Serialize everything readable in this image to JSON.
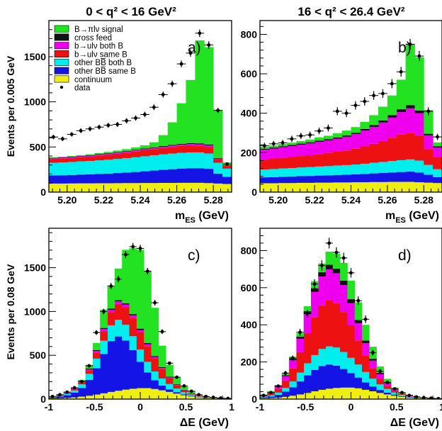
{
  "row_headers": {
    "left": "0 < q² < 16 GeV²",
    "right": "16 < q² < 26.4 GeV²"
  },
  "y_titles": {
    "top": "Events per 0.005 GeV",
    "bottom": "Events per 0.08 GeV"
  },
  "legend": [
    {
      "name": "B→πlν signal",
      "color": "#22e222",
      "kind": "box"
    },
    {
      "name": "cross feed",
      "color": "#111111",
      "kind": "box"
    },
    {
      "name": "b→ulν both B",
      "color": "#ee00ee",
      "kind": "box"
    },
    {
      "name": "b→ulν same B",
      "color": "#ee1111",
      "kind": "box"
    },
    {
      "name": "other BB̅ both B",
      "color": "#00eeee",
      "kind": "box"
    },
    {
      "name": "other BB̅ same B",
      "color": "#1414e6",
      "kind": "box"
    },
    {
      "name": "continuum",
      "color": "#eeee11",
      "kind": "box"
    },
    {
      "name": "data",
      "color": "#000000",
      "kind": "marker"
    }
  ],
  "chart_data": [
    {
      "type": "area",
      "panel": "a)",
      "xlabel": "m_ES (GeV)",
      "ylabel": "Events per 0.005 GeV",
      "title": "0 < q² < 16 GeV²",
      "xlim": [
        5.19,
        5.29
      ],
      "ylim": [
        0,
        1900
      ],
      "xticks": [
        5.2,
        5.22,
        5.24,
        5.26,
        5.28
      ],
      "xtick_labels": [
        "5.20",
        "5.22",
        "5.24",
        "5.26",
        "5.28"
      ],
      "yticks": [
        0,
        500,
        1000,
        1500
      ],
      "ytick_labels": [
        "0",
        "500",
        "1000",
        "1500"
      ],
      "x": [
        5.1925,
        5.1975,
        5.2025,
        5.2075,
        5.2125,
        5.2175,
        5.2225,
        5.2275,
        5.2325,
        5.2375,
        5.2425,
        5.2475,
        5.2525,
        5.2575,
        5.2625,
        5.2675,
        5.2725,
        5.2775,
        5.2825,
        5.2875
      ],
      "series": [
        {
          "name": "continuum",
          "values": [
            95,
            95,
            96,
            97,
            97,
            98,
            98,
            99,
            100,
            100,
            101,
            101,
            102,
            102,
            103,
            103,
            103,
            100,
            95,
            90
          ]
        },
        {
          "name": "other BB̅ same B",
          "values": [
            90,
            92,
            94,
            97,
            100,
            103,
            107,
            112,
            117,
            123,
            130,
            138,
            145,
            152,
            158,
            162,
            162,
            158,
            110,
            80
          ]
        },
        {
          "name": "other BB̅ both B",
          "values": [
            140,
            142,
            144,
            146,
            148,
            151,
            154,
            157,
            160,
            163,
            166,
            169,
            171,
            173,
            174,
            175,
            175,
            170,
            120,
            90
          ]
        },
        {
          "name": "b→ulν same B",
          "values": [
            40,
            42,
            44,
            46,
            48,
            51,
            54,
            57,
            60,
            63,
            66,
            69,
            72,
            74,
            76,
            78,
            76,
            74,
            40,
            30
          ]
        },
        {
          "name": "b→ulν both B",
          "values": [
            10,
            10,
            10,
            11,
            11,
            11,
            12,
            12,
            12,
            13,
            13,
            13,
            13,
            14,
            14,
            14,
            14,
            14,
            8,
            6
          ]
        },
        {
          "name": "cross feed",
          "values": [
            5,
            5,
            5,
            5,
            5,
            6,
            6,
            6,
            6,
            7,
            7,
            7,
            8,
            8,
            9,
            10,
            10,
            10,
            5,
            4
          ]
        },
        {
          "name": "B→πlν signal",
          "values": [
            5,
            6,
            7,
            8,
            10,
            12,
            14,
            17,
            21,
            26,
            35,
            55,
            120,
            250,
            450,
            700,
            1140,
            1080,
            530,
            30
          ]
        }
      ],
      "data_points": [
        610,
        590,
        640,
        680,
        700,
        720,
        740,
        750,
        790,
        820,
        860,
        940,
        1080,
        1200,
        1420,
        1540,
        1760,
        1630,
        905,
        310
      ],
      "data_errors": [
        25,
        25,
        25,
        26,
        27,
        27,
        28,
        28,
        29,
        29,
        30,
        31,
        33,
        35,
        38,
        40,
        42,
        41,
        30,
        18
      ],
      "legend_position": "top-left"
    },
    {
      "type": "area",
      "panel": "b)",
      "xlabel": "m_ES (GeV)",
      "ylabel": "",
      "title": "16 < q² < 26.4 GeV²",
      "xlim": [
        5.19,
        5.29
      ],
      "ylim": [
        0,
        870
      ],
      "xticks": [
        5.2,
        5.22,
        5.24,
        5.26,
        5.28
      ],
      "xtick_labels": [
        "5.20",
        "5.22",
        "5.24",
        "5.26",
        "5.28"
      ],
      "yticks": [
        0,
        200,
        400,
        600,
        800
      ],
      "ytick_labels": [
        "0",
        "200",
        "400",
        "600",
        "800"
      ],
      "x": [
        5.1925,
        5.1975,
        5.2025,
        5.2075,
        5.2125,
        5.2175,
        5.2225,
        5.2275,
        5.2325,
        5.2375,
        5.2425,
        5.2475,
        5.2525,
        5.2575,
        5.2625,
        5.2675,
        5.2725,
        5.2775,
        5.2825,
        5.2875
      ],
      "series": [
        {
          "name": "continuum",
          "values": [
            45,
            45,
            46,
            46,
            47,
            47,
            48,
            48,
            49,
            49,
            50,
            50,
            51,
            51,
            52,
            52,
            52,
            50,
            48,
            46
          ]
        },
        {
          "name": "other BB̅ same B",
          "values": [
            30,
            31,
            32,
            33,
            34,
            35,
            36,
            37,
            38,
            39,
            40,
            42,
            44,
            46,
            48,
            50,
            52,
            50,
            40,
            30
          ]
        },
        {
          "name": "other BB̅ both B",
          "values": [
            40,
            41,
            42,
            43,
            44,
            45,
            46,
            47,
            48,
            49,
            50,
            52,
            54,
            56,
            58,
            60,
            62,
            60,
            50,
            40
          ]
        },
        {
          "name": "b→ulν same B",
          "values": [
            50,
            52,
            54,
            56,
            58,
            60,
            63,
            66,
            70,
            74,
            80,
            88,
            96,
            106,
            118,
            130,
            135,
            128,
            80,
            60
          ]
        },
        {
          "name": "b→ulν both B",
          "values": [
            50,
            52,
            54,
            56,
            58,
            60,
            62,
            64,
            66,
            70,
            74,
            80,
            86,
            94,
            102,
            114,
            124,
            112,
            70,
            50
          ]
        },
        {
          "name": "cross feed",
          "values": [
            5,
            5,
            5,
            5,
            5,
            6,
            6,
            6,
            6,
            7,
            7,
            8,
            9,
            10,
            12,
            14,
            16,
            14,
            8,
            6
          ]
        },
        {
          "name": "B→πlν signal",
          "values": [
            10,
            10,
            11,
            12,
            13,
            14,
            16,
            18,
            21,
            24,
            29,
            36,
            50,
            70,
            100,
            150,
            310,
            270,
            120,
            20
          ]
        }
      ],
      "data_points": [
        235,
        245,
        250,
        270,
        285,
        290,
        310,
        325,
        410,
        400,
        440,
        460,
        490,
        500,
        550,
        610,
        750,
        690,
        410,
        280
      ],
      "data_errors": [
        15,
        15,
        15,
        16,
        16,
        17,
        17,
        18,
        20,
        20,
        21,
        21,
        22,
        22,
        23,
        25,
        27,
        26,
        20,
        16
      ]
    },
    {
      "type": "area",
      "panel": "c)",
      "xlabel": "ΔE (GeV)",
      "ylabel": "Events per 0.08 GeV",
      "xlim": [
        -1,
        1
      ],
      "ylim": [
        0,
        1950
      ],
      "xticks": [
        -1,
        -0.5,
        0,
        0.5,
        1
      ],
      "xtick_labels": [
        "-1",
        "-0.5",
        "0",
        "0.5",
        "1"
      ],
      "yticks": [
        0,
        500,
        1000,
        1500
      ],
      "ytick_labels": [
        "0",
        "500",
        "1000",
        "1500"
      ],
      "x": [
        -0.96,
        -0.88,
        -0.8,
        -0.72,
        -0.64,
        -0.56,
        -0.48,
        -0.4,
        -0.32,
        -0.24,
        -0.16,
        -0.08,
        0.0,
        0.08,
        0.16,
        0.24,
        0.32,
        0.4,
        0.48,
        0.56,
        0.64,
        0.72,
        0.8,
        0.88,
        0.96
      ],
      "series": [
        {
          "name": "continuum",
          "values": [
            8,
            10,
            14,
            20,
            28,
            38,
            52,
            66,
            82,
            95,
            108,
            118,
            125,
            125,
            115,
            100,
            82,
            62,
            44,
            30,
            20,
            13,
            9,
            6,
            4
          ]
        },
        {
          "name": "other BB̅ same B",
          "values": [
            10,
            18,
            30,
            55,
            100,
            180,
            300,
            450,
            580,
            620,
            560,
            440,
            300,
            180,
            100,
            55,
            30,
            18,
            10,
            6,
            4,
            3,
            2,
            1,
            1
          ]
        },
        {
          "name": "other BB̅ both B",
          "values": [
            4,
            8,
            14,
            24,
            40,
            70,
            110,
            150,
            180,
            190,
            180,
            160,
            140,
            120,
            100,
            80,
            60,
            40,
            25,
            15,
            8,
            5,
            3,
            2,
            1
          ]
        },
        {
          "name": "b→ulν same B",
          "values": [
            2,
            4,
            8,
            14,
            24,
            40,
            70,
            110,
            150,
            180,
            200,
            210,
            200,
            180,
            150,
            110,
            70,
            40,
            20,
            10,
            5,
            3,
            2,
            1,
            1
          ]
        },
        {
          "name": "b→ulν both B",
          "values": [
            1,
            2,
            3,
            5,
            8,
            12,
            18,
            24,
            28,
            30,
            30,
            28,
            24,
            20,
            15,
            10,
            6,
            4,
            2,
            1,
            1,
            1,
            0,
            0,
            0
          ]
        },
        {
          "name": "cross feed",
          "values": [
            1,
            2,
            3,
            4,
            6,
            8,
            10,
            12,
            14,
            15,
            16,
            16,
            15,
            14,
            12,
            10,
            8,
            6,
            4,
            3,
            2,
            1,
            1,
            1,
            1
          ]
        },
        {
          "name": "B→πlν signal",
          "values": [
            4,
            8,
            10,
            10,
            14,
            42,
            80,
            210,
            250,
            360,
            610,
            750,
            900,
            820,
            550,
            245,
            135,
            80,
            40,
            25,
            10,
            4,
            3,
            2,
            1
          ]
        }
      ],
      "data_points": [
        30,
        50,
        80,
        130,
        200,
        380,
        760,
        1000,
        1290,
        1370,
        1650,
        1740,
        1720,
        1460,
        1100,
        770,
        410,
        250,
        150,
        90,
        50,
        30,
        20,
        12,
        8
      ],
      "data_errors": [
        6,
        7,
        9,
        12,
        15,
        20,
        28,
        32,
        36,
        37,
        41,
        42,
        42,
        38,
        33,
        28,
        20,
        16,
        12,
        9,
        7,
        6,
        4,
        3,
        3
      ]
    },
    {
      "type": "area",
      "panel": "d)",
      "xlabel": "ΔE (GeV)",
      "ylabel": "",
      "xlim": [
        -1,
        1
      ],
      "ylim": [
        0,
        920
      ],
      "xticks": [
        -1,
        -0.5,
        0,
        0.5,
        1
      ],
      "xtick_labels": [
        "-1",
        "-0.5",
        "0",
        "0.5",
        "1"
      ],
      "yticks": [
        0,
        200,
        400,
        600,
        800
      ],
      "ytick_labels": [
        "0",
        "200",
        "400",
        "600",
        "800"
      ],
      "x": [
        -0.96,
        -0.88,
        -0.8,
        -0.72,
        -0.64,
        -0.56,
        -0.48,
        -0.4,
        -0.32,
        -0.24,
        -0.16,
        -0.08,
        0.0,
        0.08,
        0.16,
        0.24,
        0.32,
        0.4,
        0.48,
        0.56,
        0.64,
        0.72,
        0.8,
        0.88,
        0.96
      ],
      "series": [
        {
          "name": "continuum",
          "values": [
            5,
            6,
            8,
            12,
            18,
            25,
            33,
            42,
            50,
            56,
            60,
            62,
            62,
            58,
            50,
            42,
            33,
            25,
            18,
            12,
            8,
            6,
            4,
            3,
            2
          ]
        },
        {
          "name": "other BB̅ same B",
          "values": [
            5,
            8,
            15,
            28,
            45,
            70,
            95,
            115,
            128,
            130,
            120,
            100,
            78,
            58,
            40,
            26,
            16,
            10,
            6,
            4,
            3,
            2,
            1,
            1,
            1
          ]
        },
        {
          "name": "other BB̅ both B",
          "values": [
            4,
            7,
            12,
            20,
            32,
            48,
            65,
            80,
            92,
            98,
            98,
            92,
            82,
            70,
            56,
            42,
            30,
            20,
            12,
            7,
            4,
            2,
            1,
            1,
            0
          ]
        },
        {
          "name": "b→ulν same B",
          "values": [
            5,
            10,
            20,
            40,
            70,
            110,
            160,
            205,
            235,
            250,
            240,
            215,
            175,
            130,
            90,
            55,
            30,
            16,
            8,
            4,
            2,
            1,
            1,
            0,
            0
          ]
        },
        {
          "name": "b→ulν both B",
          "values": [
            3,
            6,
            12,
            24,
            44,
            72,
            105,
            135,
            155,
            165,
            160,
            145,
            120,
            92,
            65,
            42,
            25,
            14,
            7,
            3,
            2,
            1,
            0,
            0,
            0
          ]
        },
        {
          "name": "cross feed",
          "values": [
            1,
            2,
            3,
            5,
            8,
            12,
            16,
            20,
            23,
            25,
            25,
            24,
            21,
            18,
            14,
            10,
            7,
            4,
            2,
            1,
            1,
            0,
            0,
            0,
            0
          ]
        },
        {
          "name": "B→πlν signal",
          "values": [
            2,
            4,
            6,
            8,
            12,
            18,
            26,
            38,
            47,
            70,
            80,
            95,
            100,
            95,
            85,
            65,
            35,
            20,
            10,
            5,
            3,
            2,
            1,
            1,
            1
          ]
        }
      ],
      "data_points": [
        20,
        35,
        70,
        140,
        220,
        360,
        460,
        620,
        720,
        840,
        790,
        760,
        680,
        530,
        430,
        250,
        150,
        90,
        55,
        35,
        20,
        12,
        8,
        5,
        3
      ],
      "data_errors": [
        4,
        6,
        8,
        12,
        15,
        19,
        21,
        25,
        27,
        29,
        28,
        28,
        26,
        23,
        21,
        16,
        12,
        9,
        7,
        6,
        4,
        3,
        3,
        2,
        2
      ]
    }
  ]
}
